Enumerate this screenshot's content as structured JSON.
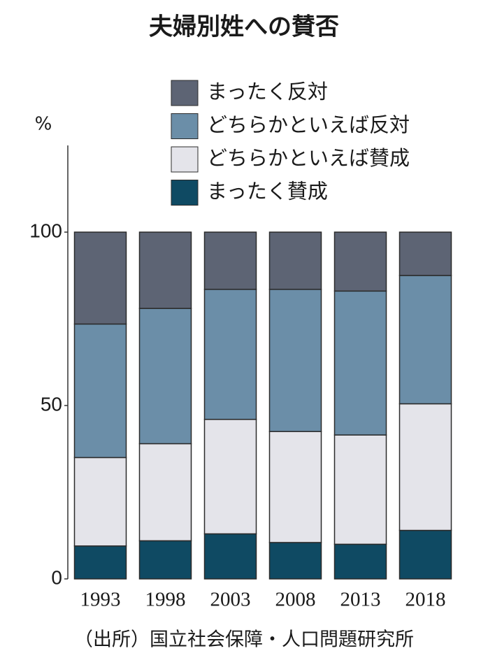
{
  "chart_data": {
    "type": "bar",
    "stacked": true,
    "title": "夫婦別姓への賛否",
    "y_label": "%",
    "source": "（出所）国立社会保障・人口問題研究所",
    "categories": [
      "1993",
      "1998",
      "2003",
      "2008",
      "2013",
      "2018"
    ],
    "series": [
      {
        "name": "まったく賛成",
        "color": "#0f4a63",
        "values": [
          9.5,
          11,
          13,
          10.5,
          10,
          14
        ]
      },
      {
        "name": "どちらかといえば賛成",
        "color": "#e4e4ea",
        "values": [
          25.5,
          28,
          33,
          32,
          31.5,
          36.5
        ]
      },
      {
        "name": "どちらかといえば反対",
        "color": "#6b8ea8",
        "values": [
          38.5,
          39,
          37.5,
          41,
          41.5,
          37
        ]
      },
      {
        "name": "まったく反対",
        "color": "#5d6474",
        "values": [
          26.5,
          22,
          16.5,
          16.5,
          17,
          12.5
        ]
      }
    ],
    "ylim": [
      0,
      125
    ],
    "yticks": [
      0,
      50,
      100
    ],
    "grid": false
  }
}
